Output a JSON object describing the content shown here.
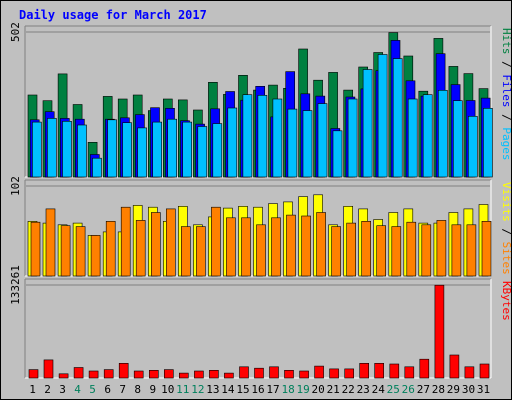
{
  "chart_data": [
    {
      "type": "bar",
      "title": "Daily usage for March 2017",
      "ymax_label": "502",
      "ylim": [
        0,
        502
      ],
      "legend": [
        {
          "name": "Pages",
          "color": "#00C0FF"
        },
        {
          "name": "Files",
          "color": "#0000FF"
        },
        {
          "name": "Hits",
          "color": "#008040"
        }
      ],
      "legend_separator": "/",
      "series": [
        {
          "name": "Hits",
          "color": "#008040",
          "values": [
            284,
            264,
            357,
            251,
            120,
            279,
            270,
            284,
            230,
            270,
            267,
            232,
            328,
            286,
            352,
            301,
            318,
            307,
            443,
            335,
            362,
            301,
            381,
            431,
            500,
            419,
            297,
            480,
            383,
            358,
            306
          ]
        },
        {
          "name": "Files",
          "color": "#0000FF",
          "values": [
            198,
            226,
            203,
            200,
            78,
            200,
            205,
            216,
            240,
            238,
            195,
            183,
            236,
            296,
            266,
            314,
            208,
            365,
            288,
            280,
            168,
            277,
            305,
            368,
            473,
            333,
            280,
            427,
            320,
            265,
            273
          ]
        },
        {
          "name": "Pages",
          "color": "#00C0FF",
          "values": [
            190,
            203,
            193,
            180,
            65,
            198,
            188,
            170,
            190,
            200,
            190,
            175,
            185,
            239,
            285,
            283,
            270,
            235,
            230,
            254,
            160,
            270,
            372,
            424,
            410,
            270,
            285,
            300,
            264,
            210,
            238
          ]
        }
      ]
    },
    {
      "type": "bar",
      "ymax_label": "102",
      "ylim": [
        0,
        102
      ],
      "legend": [
        {
          "name": "Sites",
          "color": "#FF8000"
        },
        {
          "name": "Visits",
          "color": "#FFFF00"
        }
      ],
      "legend_separator": "/",
      "series": [
        {
          "name": "Visits",
          "color": "#FFFF00",
          "values": [
            62,
            60,
            58,
            60,
            46,
            50,
            50,
            80,
            78,
            62,
            79,
            58,
            67,
            77,
            79,
            78,
            82,
            84,
            90,
            92,
            58,
            79,
            76,
            64,
            72,
            76,
            60,
            60,
            72,
            76,
            81
          ]
        },
        {
          "name": "Sites",
          "color": "#FF8000",
          "values": [
            61,
            76,
            57,
            56,
            46,
            62,
            78,
            63,
            72,
            76,
            56,
            56,
            78,
            66,
            66,
            58,
            66,
            69,
            68,
            72,
            56,
            60,
            62,
            57,
            56,
            61,
            58,
            63,
            58,
            58,
            62
          ]
        }
      ]
    },
    {
      "type": "bar",
      "ymax_label": "133261",
      "ylim": [
        0,
        133261
      ],
      "legend": [
        {
          "name": "KBytes",
          "color": "#FF0000"
        }
      ],
      "series": [
        {
          "name": "KBytes",
          "color": "#FF0000",
          "values": [
            12000,
            26000,
            6000,
            15000,
            10000,
            12000,
            21000,
            10000,
            11000,
            12000,
            7000,
            10000,
            11000,
            7000,
            16000,
            14000,
            16000,
            11000,
            10000,
            17000,
            13000,
            13000,
            21000,
            21000,
            20000,
            16000,
            27000,
            133000,
            33000,
            16000,
            20000
          ]
        }
      ]
    }
  ],
  "x_axis": {
    "categories": [
      "1",
      "2",
      "3",
      "4",
      "5",
      "6",
      "7",
      "8",
      "9",
      "10",
      "11",
      "12",
      "13",
      "14",
      "15",
      "16",
      "17",
      "18",
      "19",
      "20",
      "21",
      "22",
      "23",
      "24",
      "25",
      "26",
      "27",
      "28",
      "29",
      "30",
      "31"
    ],
    "weekend_days": [
      4,
      5,
      11,
      12,
      18,
      19,
      25,
      26
    ],
    "weekday_color": "#000000",
    "weekend_color": "#00805C"
  },
  "colors": {
    "background": "#C0C0C0",
    "title": "#0000FF",
    "axis_label": "#000000"
  }
}
